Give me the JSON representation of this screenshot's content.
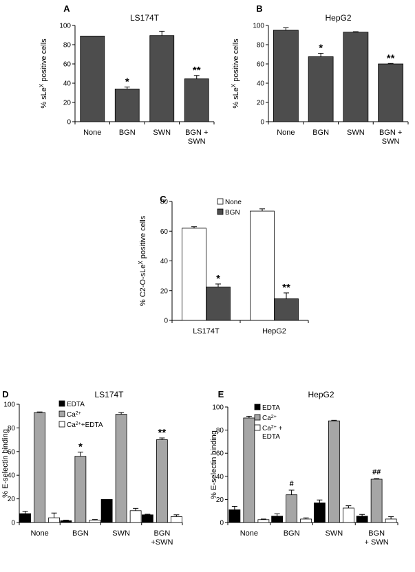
{
  "chart_data": [
    {
      "id": "A",
      "panel_label": "A",
      "type": "bar",
      "title": "LS174T",
      "ylabel": "% sLeX positive cells",
      "ylabel_parts": [
        "% sLe",
        "X",
        " positive cells"
      ],
      "ylim": [
        0,
        100
      ],
      "yticks": [
        "0",
        "20",
        "40",
        "60",
        "80",
        "100"
      ],
      "categories": [
        [
          "None"
        ],
        [
          "BGN"
        ],
        [
          "SWN"
        ],
        [
          "BGN +",
          "SWN"
        ]
      ],
      "series": [
        {
          "name": "sLeX",
          "color": "#4d4d4d",
          "values": [
            89,
            34,
            89.5,
            44.5
          ],
          "errors": [
            0,
            2,
            4.5,
            3.5
          ]
        }
      ],
      "annotations": [
        {
          "category": 1,
          "series": 0,
          "text": "*"
        },
        {
          "category": 3,
          "series": 0,
          "text": "**"
        }
      ]
    },
    {
      "id": "B",
      "panel_label": "B",
      "type": "bar",
      "title": "HepG2",
      "ylabel": "% sLeX positive cells",
      "ylabel_parts": [
        "% sLe",
        "X",
        " positive cells"
      ],
      "ylim": [
        0,
        100
      ],
      "yticks": [
        "0",
        "20",
        "40",
        "60",
        "80",
        "100"
      ],
      "categories": [
        [
          "None"
        ],
        [
          "BGN"
        ],
        [
          "SWN"
        ],
        [
          "BGN +",
          "SWN"
        ]
      ],
      "series": [
        {
          "name": "sLeX",
          "color": "#4d4d4d",
          "values": [
            95,
            67.5,
            93,
            60
          ],
          "errors": [
            2.5,
            3.5,
            0.5,
            0.5
          ]
        }
      ],
      "annotations": [
        {
          "category": 1,
          "series": 0,
          "text": "*"
        },
        {
          "category": 3,
          "series": 0,
          "text": "**"
        }
      ]
    },
    {
      "id": "C",
      "panel_label": "C",
      "type": "bar",
      "title": "",
      "ylabel": "% C2-O-sLeX positive cells",
      "ylabel_parts": [
        "% C2-O-sLe",
        "X",
        " positive cells"
      ],
      "ylim": [
        0,
        80
      ],
      "yticks": [
        "0",
        "20",
        "40",
        "60",
        "80"
      ],
      "categories": [
        [
          "LS174T"
        ],
        [
          "HepG2"
        ]
      ],
      "legend": [
        {
          "label": "None",
          "sup": "",
          "suffix": ""
        },
        {
          "label": "BGN",
          "sup": "",
          "suffix": ""
        }
      ],
      "series": [
        {
          "name": "None",
          "color": "#ffffff",
          "values": [
            62,
            73.5
          ],
          "errors": [
            1,
            1.5
          ]
        },
        {
          "name": "BGN",
          "color": "#4d4d4d",
          "values": [
            22.5,
            14.5
          ],
          "errors": [
            2,
            4
          ]
        }
      ],
      "annotations": [
        {
          "category": 0,
          "series": 1,
          "text": "*"
        },
        {
          "category": 1,
          "series": 1,
          "text": "**"
        }
      ]
    },
    {
      "id": "D",
      "panel_label": "D",
      "type": "bar",
      "title": "LS174T",
      "ylabel": "% E-selectin binding",
      "ylabel_parts": [
        "% E-selectin binding"
      ],
      "ylim": [
        0,
        100
      ],
      "yticks": [
        "0",
        "20",
        "40",
        "60",
        "80",
        "100"
      ],
      "categories": [
        [
          "None"
        ],
        [
          "BGN"
        ],
        [
          "SWN"
        ],
        [
          "BGN",
          "+SWN"
        ]
      ],
      "legend": [
        {
          "label": "EDTA",
          "sup": "",
          "suffix": ""
        },
        {
          "label": "Ca",
          "sup": "2+",
          "suffix": ""
        },
        {
          "label": "Ca",
          "sup": "2+",
          "suffix": "+EDTA"
        }
      ],
      "series": [
        {
          "name": "EDTA",
          "color": "#000000",
          "values": [
            7.5,
            1.5,
            19.5,
            6.5
          ],
          "errors": [
            2,
            0.5,
            0,
            0.5
          ]
        },
        {
          "name": "Ca2+",
          "color": "#a6a6a6",
          "values": [
            93,
            56,
            91.5,
            70
          ],
          "errors": [
            0.5,
            3.5,
            1.5,
            1.5
          ]
        },
        {
          "name": "Ca2+ +EDTA",
          "color": "#ffffff",
          "values": [
            4,
            2,
            10,
            5
          ],
          "errors": [
            4,
            0.5,
            2,
            1.5
          ]
        }
      ],
      "annotations": [
        {
          "category": 1,
          "series": 1,
          "text": "*"
        },
        {
          "category": 3,
          "series": 1,
          "text": "**"
        }
      ]
    },
    {
      "id": "E",
      "panel_label": "E",
      "type": "bar",
      "title": "HepG2",
      "ylabel": "% E-selectin binding",
      "ylabel_parts": [
        "% E-selectin binding"
      ],
      "ylim": [
        0,
        100
      ],
      "yticks": [
        "0",
        "20",
        "40",
        "60",
        "80",
        "100"
      ],
      "categories": [
        [
          "None"
        ],
        [
          "BGN"
        ],
        [
          "SWN"
        ],
        [
          "BGN",
          "+ SWN"
        ]
      ],
      "legend": [
        {
          "label": "EDTA",
          "sup": "",
          "suffix": ""
        },
        {
          "label": "Ca",
          "sup": "2+",
          "suffix": ""
        },
        {
          "label": "Ca",
          "sup": "2+",
          "suffix": " +",
          "line2": "EDTA"
        }
      ],
      "series": [
        {
          "name": "EDTA",
          "color": "#000000",
          "values": [
            11,
            5.5,
            17,
            5.5
          ],
          "errors": [
            3,
            2,
            2.5,
            1.5
          ]
        },
        {
          "name": "Ca2+",
          "color": "#a6a6a6",
          "values": [
            90.5,
            24,
            88,
            37.5
          ],
          "errors": [
            1.5,
            4,
            0.5,
            0.5
          ]
        },
        {
          "name": "Ca2+ + EDTA",
          "color": "#ffffff",
          "values": [
            2.5,
            3,
            12.5,
            3
          ],
          "errors": [
            0.5,
            1,
            2,
            2
          ]
        }
      ],
      "annotations": [
        {
          "category": 1,
          "series": 1,
          "text": "#"
        },
        {
          "category": 3,
          "series": 1,
          "text": "##"
        }
      ]
    }
  ]
}
